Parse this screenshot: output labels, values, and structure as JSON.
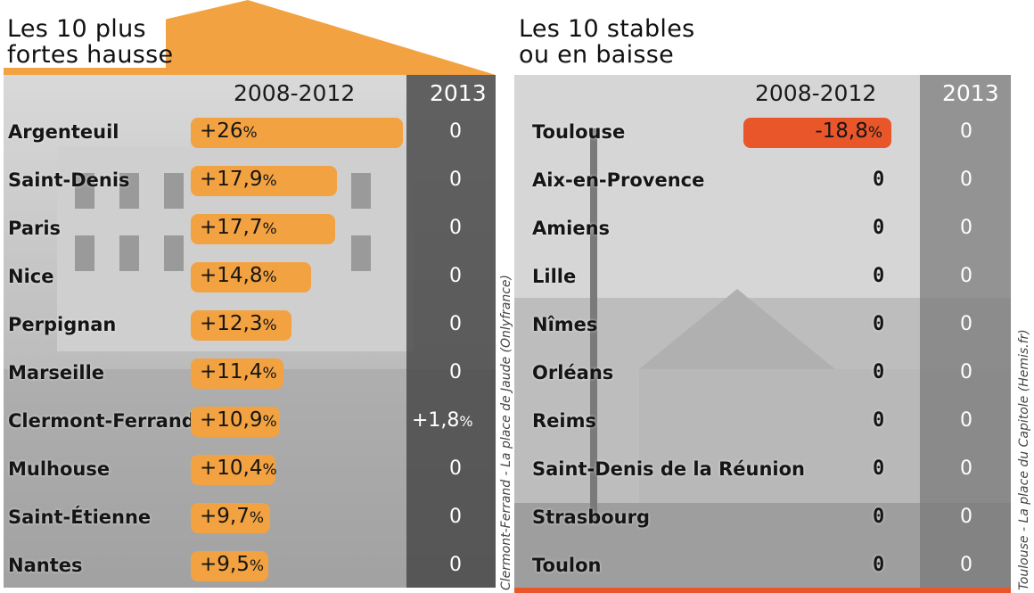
{
  "chart_data": [
    {
      "type": "bar",
      "title": "Les 10 plus fortes hausse",
      "column_headers": [
        "2008-2012",
        "2013"
      ],
      "categories": [
        "Argenteuil",
        "Saint-Denis",
        "Paris",
        "Nice",
        "Perpignan",
        "Marseille",
        "Clermont-Ferrand",
        "Mulhouse",
        "Saint-Étienne",
        "Nantes"
      ],
      "series": [
        {
          "name": "2008-2012",
          "values": [
            26,
            17.9,
            17.7,
            14.8,
            12.3,
            11.4,
            10.9,
            10.4,
            9.7,
            9.5
          ],
          "labels": [
            "+26",
            "+17,9",
            "+17,7",
            "+14,8",
            "+12,3",
            "+11,4",
            "+10,9",
            "+10,4",
            "+9,7",
            "+9,5"
          ]
        },
        {
          "name": "2013",
          "values": [
            0,
            0,
            0,
            0,
            0,
            0,
            1.8,
            0,
            0,
            0
          ],
          "labels": [
            "0",
            "0",
            "0",
            "0",
            "0",
            "0",
            "+1,8",
            "0",
            "0",
            "0"
          ]
        }
      ],
      "unit": "%",
      "bar_color": "#f2a241",
      "photo_caption": "Clermont-Ferrand - La place de Jaude (Onlyfrance)"
    },
    {
      "type": "bar",
      "title": "Les 10 stables ou en baisse",
      "column_headers": [
        "2008-2012",
        "2013"
      ],
      "categories": [
        "Toulouse",
        "Aix-en-Provence",
        "Amiens",
        "Lille",
        "Nîmes",
        "Orléans",
        "Reims",
        "Saint-Denis de la Réunion",
        "Strasbourg",
        "Toulon"
      ],
      "series": [
        {
          "name": "2008-2012",
          "values": [
            -18.8,
            0,
            0,
            0,
            0,
            0,
            0,
            0,
            0,
            0
          ],
          "labels": [
            "-18,8",
            "0",
            "0",
            "0",
            "0",
            "0",
            "0",
            "0",
            "0",
            "0"
          ]
        },
        {
          "name": "2013",
          "values": [
            0,
            0,
            0,
            0,
            0,
            0,
            0,
            0,
            0,
            0
          ],
          "labels": [
            "0",
            "0",
            "0",
            "0",
            "0",
            "0",
            "0",
            "0",
            "0",
            "0"
          ]
        }
      ],
      "unit": "%",
      "bar_color": "#e8562a",
      "photo_caption": "Toulouse - La place du Capitole (Hemis.fr)"
    }
  ],
  "left": {
    "title_line1": "Les 10 plus",
    "title_line2": "fortes hausse",
    "accent": "#f2a241"
  },
  "right": {
    "title_line1": "Les 10 stables",
    "title_line2": "ou en baisse",
    "accent": "#e8562a"
  }
}
